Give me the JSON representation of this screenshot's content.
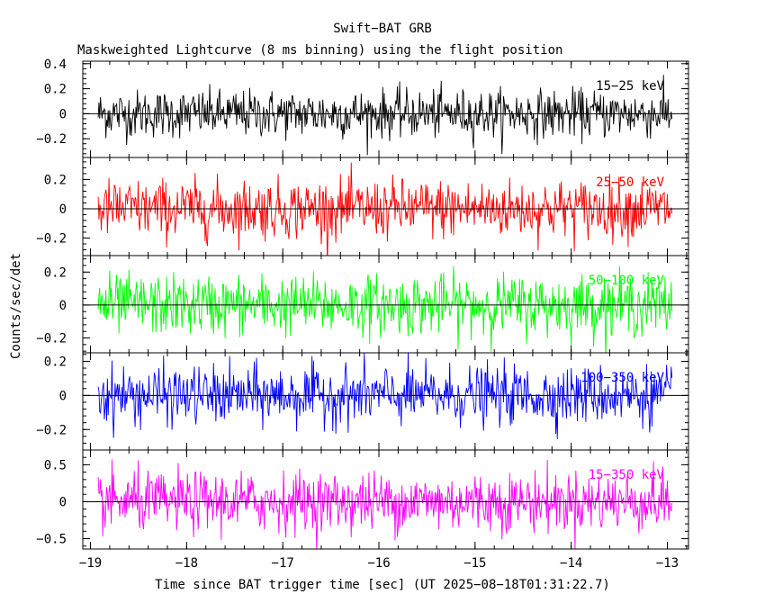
{
  "chart_data": {
    "type": "line",
    "title": "Swift−BAT GRB",
    "subtitle": "Maskweighted Lightcurve (8 ms binning) using the flight position",
    "xlabel": "Time since BAT trigger time [sec] (UT 2025−08−18T01:31:22.7)",
    "ylabel": "Counts/sec/det",
    "xlim": [
      -19.08,
      -12.78
    ],
    "xticks": [
      -19,
      -18,
      -17,
      -16,
      -15,
      -14,
      -13
    ],
    "xtick_labels": [
      "−19",
      "−18",
      "−17",
      "−16",
      "−15",
      "−14",
      "−13"
    ],
    "x_start": -18.92,
    "x_end": -12.95,
    "bin_width_sec": 0.008,
    "panels": [
      {
        "name": "15-25 keV",
        "label": "15−25 keV",
        "color": "#000000",
        "ylim": [
          -0.35,
          0.42
        ],
        "yticks": [
          -0.2,
          0,
          0.2,
          0.4
        ],
        "ytick_labels": [
          "−0.2",
          "0",
          "0.2",
          "0.4"
        ],
        "approx_sigma": 0.095,
        "mean": 0.0
      },
      {
        "name": "25-50 keV",
        "label": "25−50 keV",
        "color": "#ff0000",
        "ylim": [
          -0.32,
          0.35
        ],
        "yticks": [
          -0.2,
          0,
          0.2
        ],
        "ytick_labels": [
          "−0.2",
          "0",
          "0.2"
        ],
        "approx_sigma": 0.1,
        "mean": 0.0
      },
      {
        "name": "50-100 keV",
        "label": "50−100 keV",
        "color": "#00ff00",
        "ylim": [
          -0.29,
          0.3
        ],
        "yticks": [
          -0.2,
          0,
          0.2
        ],
        "ytick_labels": [
          "−0.2",
          "0",
          "0.2"
        ],
        "approx_sigma": 0.09,
        "mean": 0.0
      },
      {
        "name": "100-350 keV",
        "label": "100−350 keV",
        "color": "#0000ff",
        "ylim": [
          -0.32,
          0.25
        ],
        "yticks": [
          -0.2,
          0,
          0.2
        ],
        "ytick_labels": [
          "−0.2",
          "0",
          "0.2"
        ],
        "approx_sigma": 0.085,
        "mean": 0.0
      },
      {
        "name": "15-350 keV",
        "label": "15−350 keV",
        "color": "#ff00ff",
        "ylim": [
          -0.64,
          0.7
        ],
        "yticks": [
          -0.5,
          0,
          0.5
        ],
        "ytick_labels": [
          "−0.5",
          "0",
          "0.5"
        ],
        "approx_sigma": 0.2,
        "mean": 0.0
      }
    ]
  }
}
